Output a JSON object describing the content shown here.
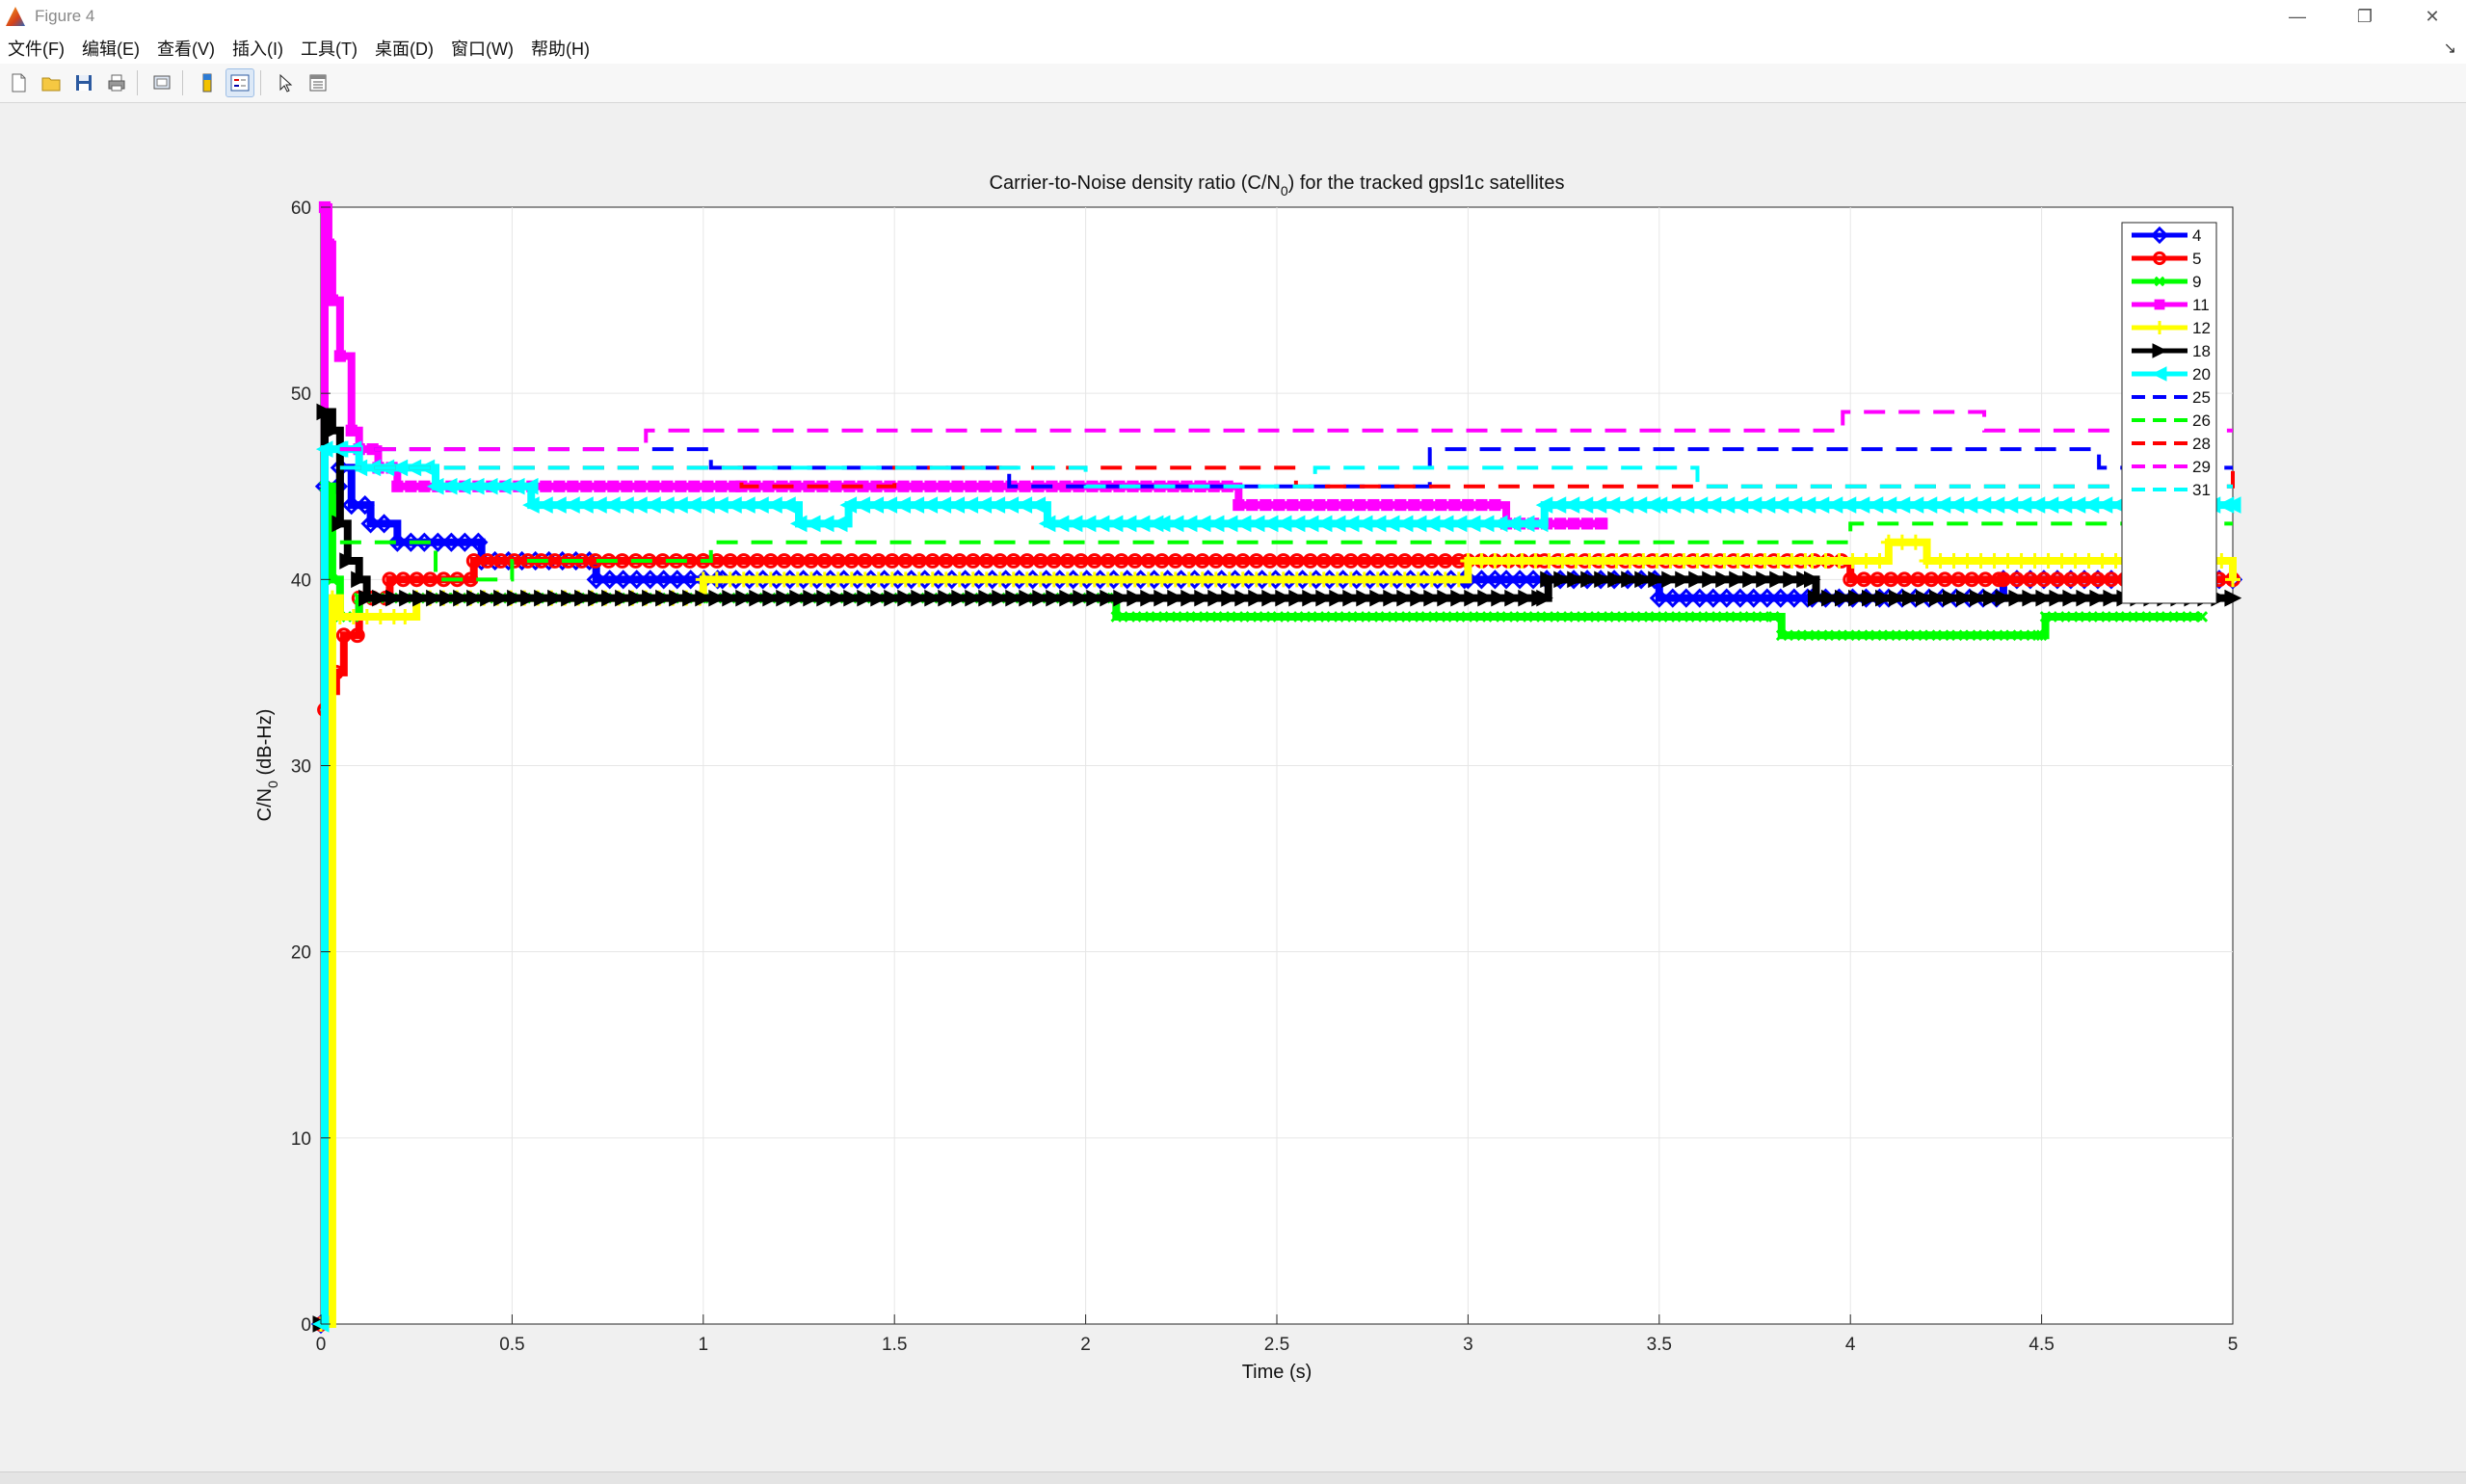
{
  "window": {
    "title": "Figure 4"
  },
  "menu": {
    "items": [
      "文件(F)",
      "编辑(E)",
      "查看(V)",
      "插入(I)",
      "工具(T)",
      "桌面(D)",
      "窗口(W)",
      "帮助(H)"
    ]
  },
  "toolbar": {
    "buttons": [
      {
        "name": "new-figure-icon"
      },
      {
        "name": "open-file-icon"
      },
      {
        "name": "save-icon"
      },
      {
        "name": "print-icon"
      },
      {
        "name": "link-plot-icon"
      },
      {
        "name": "insert-colorbar-icon"
      },
      {
        "name": "insert-legend-icon"
      },
      {
        "name": "edit-plot-cursor-icon"
      },
      {
        "name": "property-inspector-icon"
      }
    ]
  },
  "chart_data": {
    "type": "line",
    "title": "Carrier-to-Noise density ratio (C/N0) for the tracked gpsl1c satellites",
    "title_parts": {
      "before": "Carrier-to-Noise density ratio (C/N",
      "sub": "0",
      "after": ") for the tracked gpsl1c satellites"
    },
    "xlabel": "Time (s)",
    "ylabel": "C/N0 (dB-Hz)",
    "ylabel_parts": {
      "before": "C/N",
      "sub": "0",
      "after": " (dB-Hz)"
    },
    "xlim": [
      0,
      5
    ],
    "ylim": [
      0,
      60
    ],
    "xticks": [
      0,
      0.5,
      1,
      1.5,
      2,
      2.5,
      3,
      3.5,
      4,
      4.5,
      5
    ],
    "yticks": [
      0,
      10,
      20,
      30,
      40,
      50,
      60
    ],
    "grid": true,
    "legend_position": "top-right",
    "series": [
      {
        "name": "4",
        "color": "#0000ff",
        "style": "solid",
        "marker": "diamond",
        "points": [
          [
            0,
            0
          ],
          [
            0.01,
            45
          ],
          [
            0.05,
            46
          ],
          [
            0.08,
            44
          ],
          [
            0.13,
            43
          ],
          [
            0.2,
            42
          ],
          [
            0.42,
            41
          ],
          [
            0.72,
            40
          ],
          [
            1.05,
            40
          ],
          [
            3.0,
            40
          ],
          [
            3.1,
            40
          ],
          [
            3.5,
            39
          ],
          [
            3.9,
            39
          ],
          [
            4.1,
            39
          ],
          [
            4.4,
            40
          ],
          [
            5.0,
            40
          ]
        ]
      },
      {
        "name": "5",
        "color": "#ff0000",
        "style": "solid",
        "marker": "circle",
        "points": [
          [
            0,
            0
          ],
          [
            0.01,
            33
          ],
          [
            0.02,
            34
          ],
          [
            0.04,
            35
          ],
          [
            0.06,
            37
          ],
          [
            0.1,
            39
          ],
          [
            0.18,
            40
          ],
          [
            0.4,
            41
          ],
          [
            1.0,
            41
          ],
          [
            3.0,
            41
          ],
          [
            3.2,
            41
          ],
          [
            4.0,
            40
          ],
          [
            4.4,
            40
          ],
          [
            5.0,
            40
          ]
        ]
      },
      {
        "name": "9",
        "color": "#00ff00",
        "style": "solid",
        "marker": "x",
        "points": [
          [
            0,
            0
          ],
          [
            0.01,
            45
          ],
          [
            0.03,
            40
          ],
          [
            0.05,
            38
          ],
          [
            0.1,
            39
          ],
          [
            0.35,
            39
          ],
          [
            0.5,
            39
          ],
          [
            1.0,
            39
          ],
          [
            2.07,
            39
          ],
          [
            2.08,
            38
          ],
          [
            3.8,
            38
          ],
          [
            3.82,
            37
          ],
          [
            4.5,
            37
          ],
          [
            4.51,
            38
          ],
          [
            4.92,
            38
          ]
        ]
      },
      {
        "name": "11",
        "color": "#ff00ff",
        "style": "solid",
        "marker": "square",
        "points": [
          [
            0,
            0
          ],
          [
            0.01,
            60
          ],
          [
            0.02,
            58
          ],
          [
            0.03,
            55
          ],
          [
            0.05,
            52
          ],
          [
            0.08,
            48
          ],
          [
            0.1,
            47
          ],
          [
            0.15,
            46
          ],
          [
            0.2,
            45
          ],
          [
            1.1,
            45
          ],
          [
            2.3,
            45
          ],
          [
            2.4,
            44
          ],
          [
            3.0,
            44
          ],
          [
            3.1,
            43
          ],
          [
            3.35,
            43
          ]
        ]
      },
      {
        "name": "12",
        "color": "#ffff00",
        "style": "solid",
        "marker": "plus",
        "points": [
          [
            0,
            0
          ],
          [
            0.03,
            39
          ],
          [
            0.05,
            38
          ],
          [
            0.22,
            38
          ],
          [
            0.25,
            39
          ],
          [
            1.0,
            40
          ],
          [
            3.0,
            41
          ],
          [
            3.9,
            41
          ],
          [
            4.1,
            42
          ],
          [
            4.2,
            41
          ],
          [
            4.9,
            41
          ],
          [
            5.0,
            40
          ]
        ]
      },
      {
        "name": "18",
        "color": "#000000",
        "style": "solid",
        "marker": "triangle-right",
        "points": [
          [
            0,
            0
          ],
          [
            0.01,
            49
          ],
          [
            0.03,
            48
          ],
          [
            0.05,
            43
          ],
          [
            0.07,
            41
          ],
          [
            0.1,
            40
          ],
          [
            0.12,
            39
          ],
          [
            1.0,
            39
          ],
          [
            3.2,
            39
          ],
          [
            3.21,
            40
          ],
          [
            3.9,
            40
          ],
          [
            3.91,
            39
          ],
          [
            4.4,
            39
          ],
          [
            5.0,
            39
          ]
        ]
      },
      {
        "name": "20",
        "color": "#00ffff",
        "style": "solid",
        "marker": "triangle-left",
        "points": [
          [
            0,
            0
          ],
          [
            0.01,
            47
          ],
          [
            0.05,
            47
          ],
          [
            0.1,
            46
          ],
          [
            0.3,
            45
          ],
          [
            0.55,
            44
          ],
          [
            1.25,
            43
          ],
          [
            1.38,
            44
          ],
          [
            1.9,
            43
          ],
          [
            2.2,
            43
          ],
          [
            3.2,
            44
          ],
          [
            3.5,
            44
          ],
          [
            5.0,
            44
          ]
        ]
      },
      {
        "name": "25",
        "color": "#0000ff",
        "style": "dashed",
        "marker": "none",
        "points": [
          [
            0.05,
            47
          ],
          [
            0.4,
            47
          ],
          [
            1.0,
            47
          ],
          [
            1.02,
            46
          ],
          [
            1.05,
            46
          ],
          [
            1.8,
            46
          ],
          [
            1.8,
            45
          ],
          [
            2.9,
            45
          ],
          [
            2.9,
            47
          ],
          [
            4.6,
            47
          ],
          [
            4.65,
            46
          ],
          [
            5.0,
            46
          ]
        ]
      },
      {
        "name": "26",
        "color": "#00ff00",
        "style": "dashed",
        "marker": "none",
        "points": [
          [
            0.05,
            42
          ],
          [
            0.3,
            40
          ],
          [
            0.5,
            41
          ],
          [
            1.0,
            41
          ],
          [
            1.02,
            42
          ],
          [
            3.9,
            42
          ],
          [
            4.0,
            43
          ],
          [
            5.0,
            43
          ]
        ]
      },
      {
        "name": "28",
        "color": "#ff0000",
        "style": "dashed",
        "marker": "none",
        "points": [
          [
            0.05,
            46
          ],
          [
            0.4,
            46
          ],
          [
            1.1,
            45
          ],
          [
            1.5,
            46
          ],
          [
            2.55,
            46
          ],
          [
            2.55,
            45
          ],
          [
            3.0,
            45
          ],
          [
            5.0,
            46
          ]
        ]
      },
      {
        "name": "29",
        "color": "#ff00ff",
        "style": "dashed",
        "marker": "none",
        "points": [
          [
            0.05,
            47
          ],
          [
            0.85,
            47
          ],
          [
            0.85,
            48
          ],
          [
            3.95,
            48
          ],
          [
            3.98,
            49
          ],
          [
            4.3,
            49
          ],
          [
            4.35,
            48
          ],
          [
            5.0,
            48
          ]
        ]
      },
      {
        "name": "31",
        "color": "#00ffff",
        "style": "dashed",
        "marker": "none",
        "points": [
          [
            0.05,
            46
          ],
          [
            1.0,
            46
          ],
          [
            2.0,
            45
          ],
          [
            2.6,
            46
          ],
          [
            3.4,
            46
          ],
          [
            3.6,
            45
          ],
          [
            5.0,
            45
          ]
        ]
      }
    ]
  }
}
